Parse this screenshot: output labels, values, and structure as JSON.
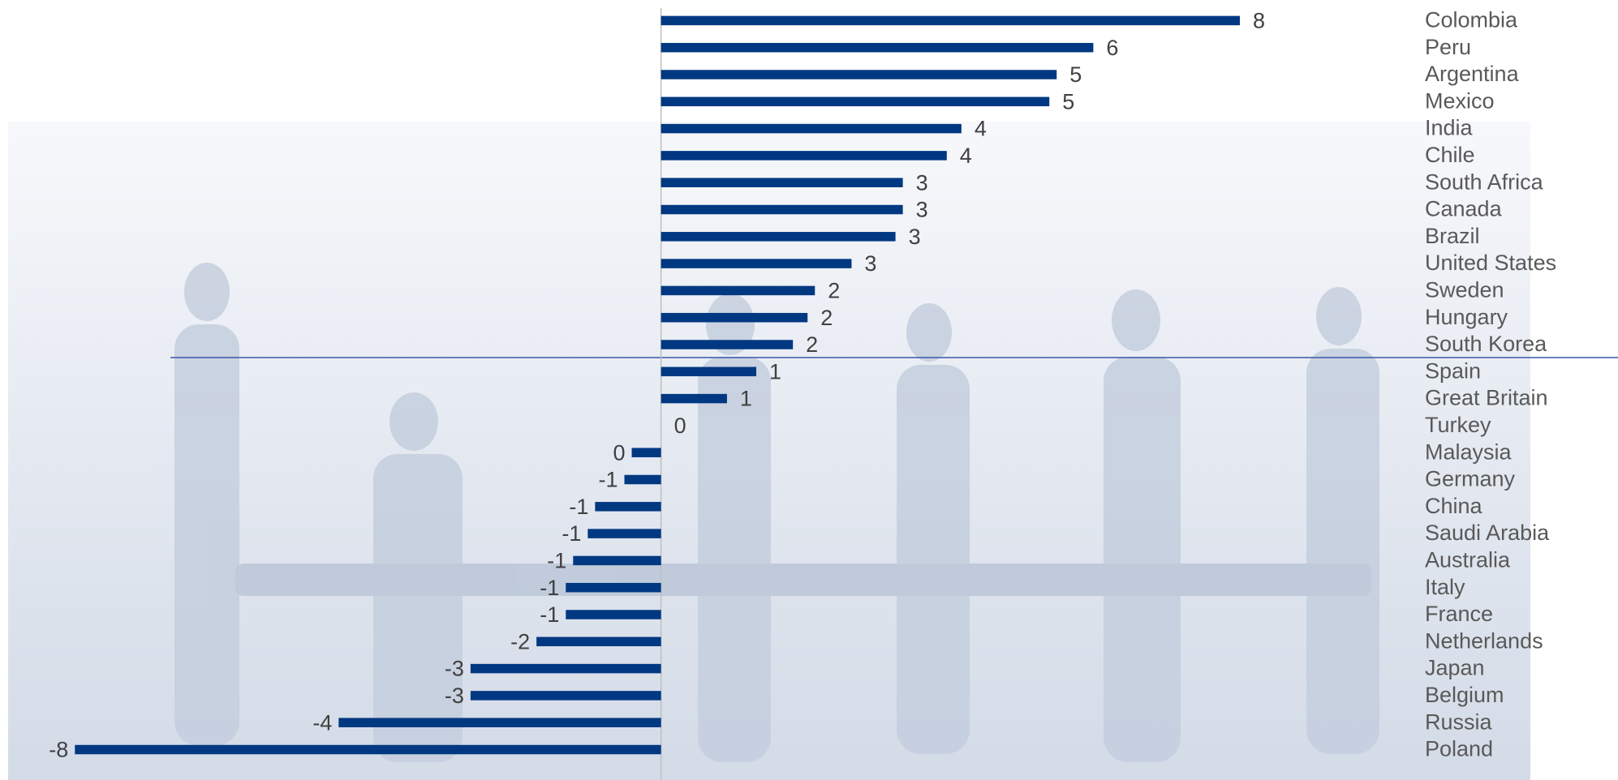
{
  "chart_data": {
    "type": "bar",
    "orientation": "horizontal",
    "categories": [
      "Colombia",
      "Peru",
      "Argentina",
      "Mexico",
      "India",
      "Chile",
      "South Africa",
      "Canada",
      "Brazil",
      "United States",
      "Sweden",
      "Hungary",
      "South Korea",
      "Spain",
      "Great Britain",
      "Turkey",
      "Malaysia",
      "Germany",
      "China",
      "Saudi Arabia",
      "Australia",
      "Italy",
      "France",
      "Netherlands",
      "Japan",
      "Belgium",
      "Russia",
      "Poland"
    ],
    "values": [
      7.9,
      5.9,
      5.4,
      5.3,
      4.1,
      3.9,
      3.3,
      3.3,
      3.2,
      2.6,
      2.1,
      2.0,
      1.8,
      1.3,
      0.9,
      0.0,
      -0.4,
      -0.5,
      -0.9,
      -1.0,
      -1.2,
      -1.3,
      -1.3,
      -1.7,
      -2.6,
      -2.6,
      -4.4,
      -8.0
    ],
    "value_labels": [
      "8",
      "6",
      "5",
      "5",
      "4",
      "4",
      "3",
      "3",
      "3",
      "3",
      "2",
      "2",
      "2",
      "1",
      "1",
      "0",
      "0",
      "-1",
      "-1",
      "-1",
      "-1",
      "-1",
      "-1",
      "-2",
      "-3",
      "-3",
      "-4",
      "-8"
    ],
    "color": "#003882",
    "xlim": [
      -9,
      8
    ]
  }
}
